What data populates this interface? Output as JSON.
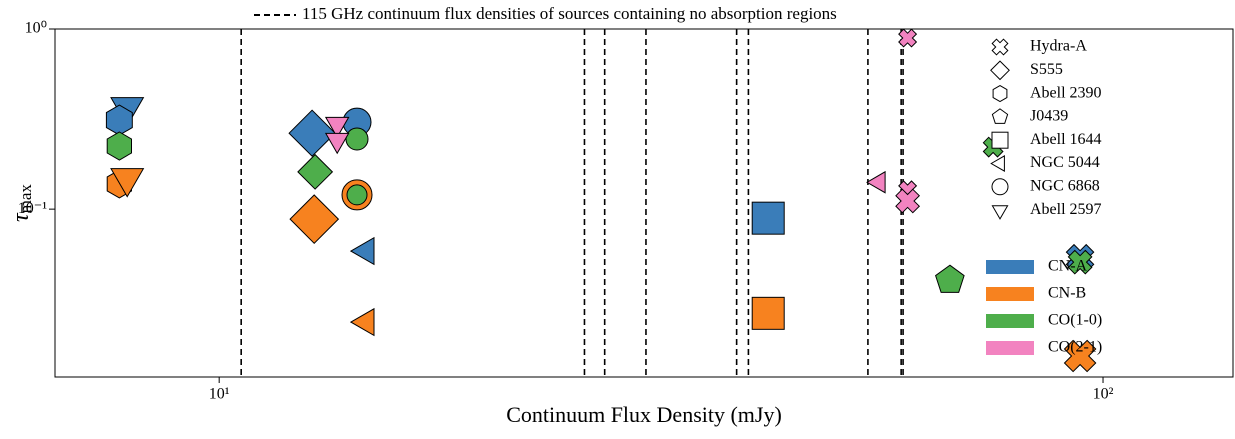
{
  "chart_data": {
    "type": "scatter",
    "title": "115 GHz continuum flux densities of sources containing no absorption regions",
    "x_label": "Continuum Flux Density (mJy)",
    "y_label": {
      "symbol": "τ",
      "subscript": "max"
    },
    "xscale": "log",
    "yscale": "log",
    "xlim": [
      6.52,
      140.3
    ],
    "ylim": [
      0.0117,
      1
    ],
    "xticks": [
      {
        "value": 10,
        "label": "10¹"
      },
      {
        "value": 100,
        "label": "10²"
      }
    ],
    "yticks": [
      {
        "value": 0.1,
        "label": "10⁻¹"
      },
      {
        "value": 1,
        "label": "10⁰"
      }
    ],
    "vlines": [
      10.59,
      25.9,
      27.3,
      30.4,
      38.5,
      39.7,
      54.2,
      59.1,
      59.4
    ],
    "sources": [
      {
        "name": "Hydra-A",
        "marker": "x"
      },
      {
        "name": "S555",
        "marker": "diamond"
      },
      {
        "name": "Abell 2390",
        "marker": "hexagon"
      },
      {
        "name": "J0439",
        "marker": "pentagon"
      },
      {
        "name": "Abell 1644",
        "marker": "square"
      },
      {
        "name": "NGC 5044",
        "marker": "triangle-left"
      },
      {
        "name": "NGC 6868",
        "marker": "circle"
      },
      {
        "name": "Abell 2597",
        "marker": "triangle-down"
      }
    ],
    "lines": [
      {
        "name": "CN-A",
        "color": "#3a7db9"
      },
      {
        "name": "CN-B",
        "color": "#f7821f"
      },
      {
        "name": "CO(1-0)",
        "color": "#4eae4b"
      },
      {
        "name": "CO(2-1)",
        "color": "#f283c0"
      }
    ],
    "points": [
      {
        "x": 7.87,
        "y": 0.369,
        "source": "Abell 2597",
        "line": "CN-A",
        "size": 17
      },
      {
        "x": 7.71,
        "y": 0.312,
        "source": "Abell 2390",
        "line": "CN-A",
        "size": 15
      },
      {
        "x": 7.71,
        "y": 0.224,
        "source": "Abell 2390",
        "line": "CO(1-0)",
        "size": 14
      },
      {
        "x": 7.71,
        "y": 0.138,
        "source": "Abell 2390",
        "line": "CN-B",
        "size": 14
      },
      {
        "x": 7.87,
        "y": 0.149,
        "source": "Abell 2597",
        "line": "CN-B",
        "size": 17
      },
      {
        "x": 12.74,
        "y": 0.264,
        "source": "S555",
        "line": "CN-A",
        "size": 20
      },
      {
        "x": 12.84,
        "y": 0.161,
        "source": "S555",
        "line": "CO(1-0)",
        "size": 15
      },
      {
        "x": 12.81,
        "y": 0.088,
        "source": "S555",
        "line": "CN-B",
        "size": 21
      },
      {
        "x": 14.32,
        "y": 0.304,
        "source": "NGC 6868",
        "line": "CN-A",
        "size": 14
      },
      {
        "x": 14.32,
        "y": 0.245,
        "source": "NGC 6868",
        "line": "CO(1-0)",
        "size": 11
      },
      {
        "x": 13.6,
        "y": 0.297,
        "source": "Abell 2597",
        "line": "CO(2-1)",
        "size": 12
      },
      {
        "x": 13.6,
        "y": 0.242,
        "source": "Abell 2597",
        "line": "CO(2-1)",
        "size": 12
      },
      {
        "x": 14.32,
        "y": 0.12,
        "source": "NGC 6868",
        "line": "CN-B",
        "size": 15
      },
      {
        "x": 14.32,
        "y": 0.12,
        "source": "NGC 6868",
        "line": "CO(1-0)",
        "size": 10
      },
      {
        "x": 14.67,
        "y": 0.0585,
        "source": "NGC 5044",
        "line": "CN-A",
        "size": 14
      },
      {
        "x": 14.67,
        "y": 0.0236,
        "source": "NGC 5044",
        "line": "CN-B",
        "size": 14
      },
      {
        "x": 55.8,
        "y": 0.141,
        "source": "NGC 5044",
        "line": "CO(2-1)",
        "size": 11
      },
      {
        "x": 41.8,
        "y": 0.0891,
        "source": "Abell 1644",
        "line": "CN-A",
        "size": 16
      },
      {
        "x": 41.8,
        "y": 0.0264,
        "source": "Abell 1644",
        "line": "CN-B",
        "size": 16
      },
      {
        "x": 67.1,
        "y": 0.0403,
        "source": "J0439",
        "line": "CO(1-0)",
        "size": 15
      },
      {
        "x": 60.1,
        "y": 0.891,
        "source": "Hydra-A",
        "line": "CO(2-1)",
        "size": 9
      },
      {
        "x": 60.1,
        "y": 0.128,
        "source": "Hydra-A",
        "line": "CO(2-1)",
        "size": 9
      },
      {
        "x": 60.1,
        "y": 0.111,
        "source": "Hydra-A",
        "line": "CO(2-1)",
        "size": 12
      },
      {
        "x": 75.1,
        "y": 0.221,
        "source": "Hydra-A",
        "line": "CO(1-0)",
        "size": 10
      },
      {
        "x": 94.2,
        "y": 0.0534,
        "source": "Hydra-A",
        "line": "CN-A",
        "size": 14
      },
      {
        "x": 94.2,
        "y": 0.0508,
        "source": "Hydra-A",
        "line": "CO(1-0)",
        "size": 12
      },
      {
        "x": 94.2,
        "y": 0.0153,
        "source": "Hydra-A",
        "line": "CN-B",
        "size": 16
      }
    ]
  }
}
